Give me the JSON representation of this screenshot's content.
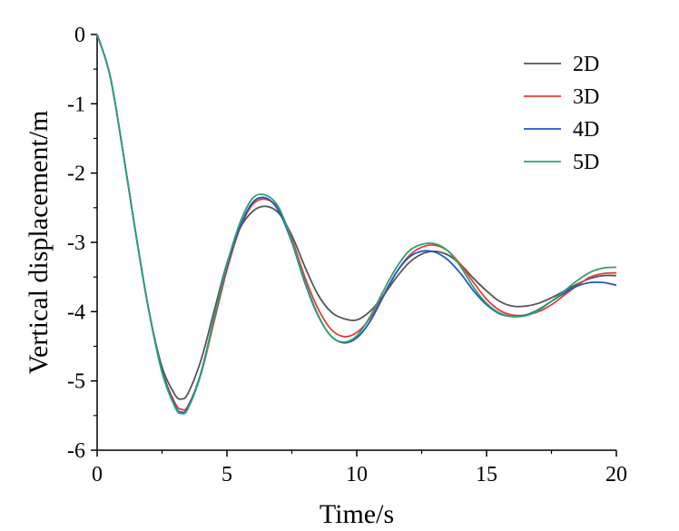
{
  "chart_data": {
    "type": "line",
    "xlabel": "Time/s",
    "ylabel": "Vertical displacement/m",
    "xlim": [
      0,
      20
    ],
    "ylim": [
      -6,
      0
    ],
    "xticks": [
      0,
      5,
      10,
      15,
      20
    ],
    "yticks": [
      0,
      -1,
      -2,
      -3,
      -4,
      -5,
      -6
    ],
    "grid": false,
    "legend_position": "top-right",
    "x": [
      0,
      0.5,
      1,
      1.5,
      2,
      2.5,
      3,
      3.25,
      3.5,
      4,
      4.5,
      5,
      5.5,
      6,
      6.5,
      7,
      7.5,
      8,
      8.5,
      9,
      9.5,
      10,
      10.5,
      11,
      11.5,
      12,
      12.5,
      13,
      13.5,
      14,
      14.5,
      15,
      15.5,
      16,
      16.5,
      17,
      17.5,
      18,
      18.5,
      19,
      19.5,
      20
    ],
    "series": [
      {
        "name": "2D",
        "color": "#555555",
        "values": [
          0,
          -0.6,
          -1.7,
          -2.9,
          -4.0,
          -4.8,
          -5.2,
          -5.26,
          -5.18,
          -4.7,
          -4.0,
          -3.3,
          -2.8,
          -2.55,
          -2.48,
          -2.58,
          -2.9,
          -3.35,
          -3.75,
          -4.0,
          -4.1,
          -4.12,
          -4.0,
          -3.78,
          -3.52,
          -3.3,
          -3.17,
          -3.13,
          -3.18,
          -3.32,
          -3.52,
          -3.7,
          -3.85,
          -3.92,
          -3.92,
          -3.88,
          -3.8,
          -3.7,
          -3.6,
          -3.52,
          -3.48,
          -3.48
        ]
      },
      {
        "name": "3D",
        "color": "#e8393a",
        "values": [
          0,
          -0.6,
          -1.7,
          -2.9,
          -4.0,
          -4.85,
          -5.32,
          -5.41,
          -5.36,
          -4.9,
          -4.15,
          -3.4,
          -2.8,
          -2.45,
          -2.38,
          -2.52,
          -2.95,
          -3.5,
          -3.95,
          -4.25,
          -4.36,
          -4.3,
          -4.1,
          -3.78,
          -3.45,
          -3.2,
          -3.07,
          -3.04,
          -3.12,
          -3.32,
          -3.58,
          -3.82,
          -3.98,
          -4.05,
          -4.05,
          -4.0,
          -3.9,
          -3.76,
          -3.62,
          -3.5,
          -3.45,
          -3.44
        ]
      },
      {
        "name": "4D",
        "color": "#1f56c8",
        "values": [
          0,
          -0.6,
          -1.7,
          -2.9,
          -4.0,
          -4.85,
          -5.36,
          -5.45,
          -5.38,
          -4.88,
          -4.1,
          -3.35,
          -2.78,
          -2.42,
          -2.36,
          -2.55,
          -3.0,
          -3.58,
          -4.05,
          -4.35,
          -4.45,
          -4.38,
          -4.15,
          -3.8,
          -3.45,
          -3.22,
          -3.13,
          -3.14,
          -3.25,
          -3.45,
          -3.7,
          -3.9,
          -4.03,
          -4.07,
          -4.05,
          -3.97,
          -3.85,
          -3.73,
          -3.63,
          -3.58,
          -3.58,
          -3.62
        ]
      },
      {
        "name": "5D",
        "color": "#2da36a",
        "values": [
          0,
          -0.6,
          -1.7,
          -2.9,
          -4.0,
          -4.88,
          -5.38,
          -5.47,
          -5.4,
          -4.9,
          -4.1,
          -3.32,
          -2.72,
          -2.36,
          -2.32,
          -2.5,
          -2.98,
          -3.56,
          -4.04,
          -4.35,
          -4.44,
          -4.35,
          -4.08,
          -3.72,
          -3.38,
          -3.13,
          -3.03,
          -3.02,
          -3.12,
          -3.35,
          -3.65,
          -3.88,
          -4.02,
          -4.07,
          -4.06,
          -3.98,
          -3.85,
          -3.7,
          -3.55,
          -3.43,
          -3.37,
          -3.36
        ]
      }
    ]
  }
}
